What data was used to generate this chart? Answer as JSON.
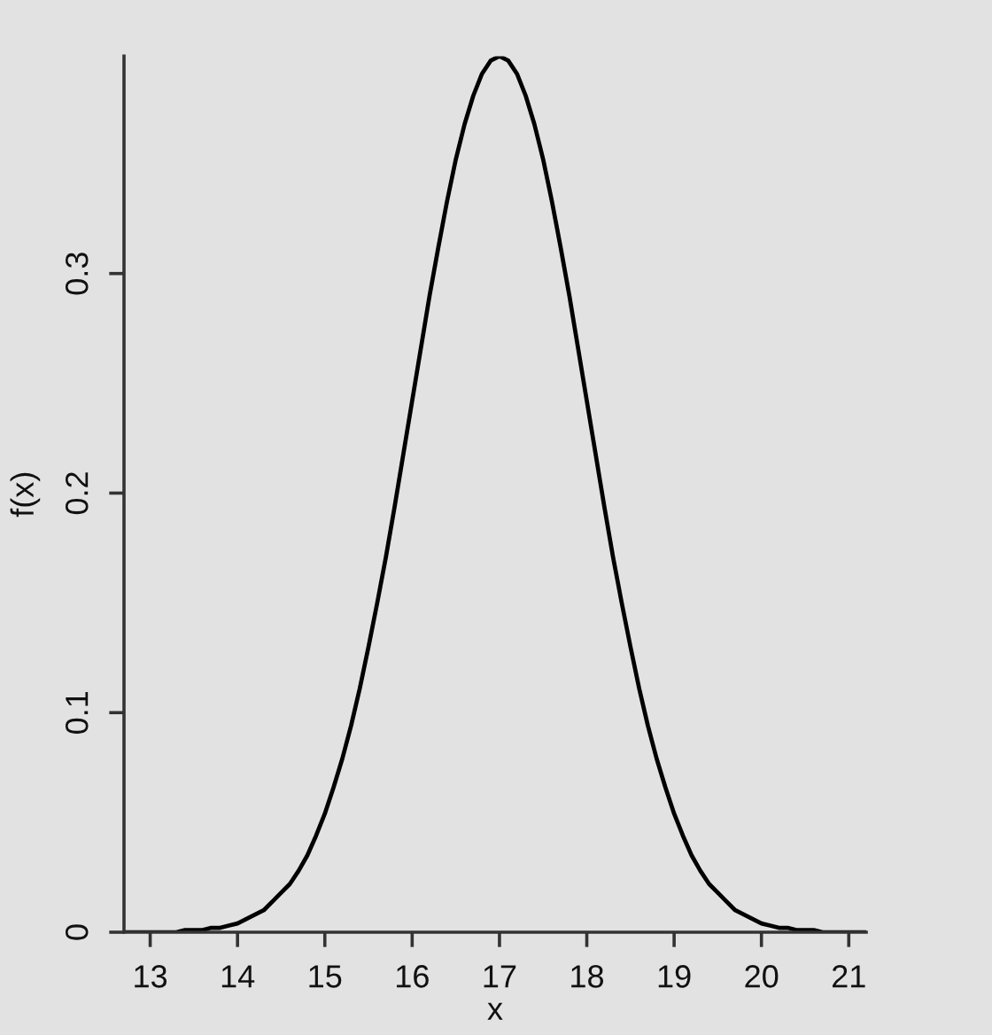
{
  "chart_data": {
    "type": "line",
    "xlabel": "x",
    "ylabel": "f(x)",
    "x": [
      12.7,
      12.8,
      12.9,
      13.0,
      13.1,
      13.2,
      13.3,
      13.4,
      13.5,
      13.6,
      13.7,
      13.8,
      13.9,
      14.0,
      14.1,
      14.2,
      14.3,
      14.4,
      14.5,
      14.6,
      14.7,
      14.8,
      14.9,
      15.0,
      15.1,
      15.2,
      15.3,
      15.4,
      15.5,
      15.6,
      15.7,
      15.8,
      15.9,
      16.0,
      16.1,
      16.2,
      16.3,
      16.4,
      16.5,
      16.6,
      16.7,
      16.8,
      16.9,
      17.0,
      17.1,
      17.2,
      17.3,
      17.4,
      17.5,
      17.6,
      17.7,
      17.8,
      17.9,
      18.0,
      18.1,
      18.2,
      18.3,
      18.4,
      18.5,
      18.6,
      18.7,
      18.8,
      18.9,
      19.0,
      19.1,
      19.2,
      19.3,
      19.4,
      19.5,
      19.6,
      19.7,
      19.8,
      19.9,
      20.0,
      20.1,
      20.2,
      20.3,
      20.4,
      20.5,
      20.6,
      20.7,
      20.8,
      20.9,
      21.0,
      21.1,
      21.2
    ],
    "series": [
      {
        "color": "#000000",
        "values": [
          0,
          0,
          0,
          0,
          0,
          0,
          0,
          0.001,
          0.001,
          0.001,
          0.002,
          0.002,
          0.003,
          0.004,
          0.006,
          0.008,
          0.01,
          0.014,
          0.018,
          0.022,
          0.028,
          0.035,
          0.044,
          0.054,
          0.066,
          0.079,
          0.094,
          0.111,
          0.13,
          0.15,
          0.171,
          0.194,
          0.218,
          0.242,
          0.266,
          0.29,
          0.312,
          0.333,
          0.352,
          0.368,
          0.381,
          0.391,
          0.397,
          0.399,
          0.397,
          0.391,
          0.381,
          0.368,
          0.352,
          0.333,
          0.312,
          0.29,
          0.266,
          0.242,
          0.218,
          0.194,
          0.171,
          0.15,
          0.13,
          0.111,
          0.094,
          0.079,
          0.066,
          0.054,
          0.044,
          0.035,
          0.028,
          0.022,
          0.018,
          0.014,
          0.01,
          0.008,
          0.006,
          0.004,
          0.003,
          0.002,
          0.002,
          0.001,
          0.001,
          0.001,
          0,
          0,
          0,
          0,
          0,
          0
        ]
      }
    ],
    "xlim": [
      12.7,
      21.2
    ],
    "xticks": [
      13,
      14,
      15,
      16,
      17,
      18,
      19,
      20,
      21
    ],
    "ylim": [
      0,
      0.399
    ],
    "yticks": [
      0,
      0.1,
      0.2,
      0.3
    ]
  }
}
